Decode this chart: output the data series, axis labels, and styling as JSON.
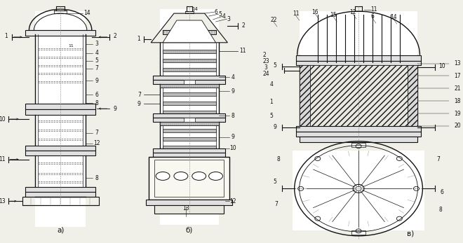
{
  "bg_color": "#f0efe8",
  "line_color": "#1a1a1a",
  "label_a": "а)",
  "label_b": "б)",
  "label_v": "в)",
  "fig_width": 6.6,
  "fig_height": 3.47,
  "dpi": 100
}
